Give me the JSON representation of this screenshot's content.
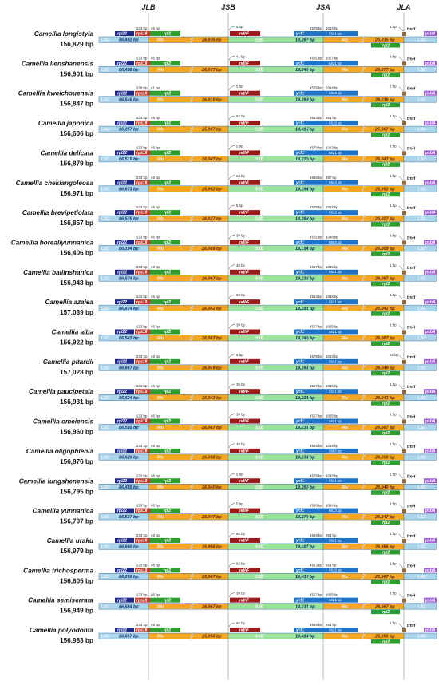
{
  "header": {
    "junctions": [
      "JLB",
      "JSB",
      "JSA",
      "JLA"
    ]
  },
  "regions": {
    "lsc": "LSC",
    "irb": "IRb",
    "ssc": "SSC",
    "ira": "IRa"
  },
  "genes": {
    "rpl22": "rpl22",
    "rps19": "rps19",
    "rpl2": "rpl2",
    "ndhF": "ndhF",
    "ycf1": "ycf1",
    "trnH": "trnH",
    "psbA": "psbA"
  },
  "colors": {
    "lsc": "#a9d4ea",
    "irb": "#f5a623",
    "ssc": "#9be39b",
    "ira": "#f5a623",
    "rpl22": "#1f2a8a",
    "rps19": "#c0392b",
    "rpl2": "#2e9e2e",
    "ndhF": "#9b1b1b",
    "ycf1": "#1e74c8",
    "trnH": "#8b6a3e",
    "psbA": "#9b59d6",
    "junction_line": "#aaaaaa"
  },
  "species": [
    {
      "name": "Camellia longistyla",
      "length": "156,829 bp",
      "lsc": "86,492 bp",
      "ir": "26,035 bp",
      "ssc": "18,267 bp",
      "rps19_ir": "233 bp",
      "rps19_lsc": "46 bp",
      "ndhf": "5 bp",
      "ycf1_ira": "4578 bp",
      "ycf1_ssc": "1043 bp",
      "ycf1_len": "5621 bp",
      "trnh": "1 bp"
    },
    {
      "name": "Camellia lienshanensis",
      "length": "156,901 bp",
      "lsc": "86,498 bp",
      "ir": "26,077 bp",
      "ssc": "18,248 bp",
      "rps19_ir": "233 bp",
      "rps19_lsc": "46 bp",
      "ndhf": "41 bp",
      "ndhf_len": "2252 bp",
      "ycf1_ira": "4565 bp",
      "ycf1_ssc": "1057 bp",
      "ycf1_len": "5621 bp",
      "trnh": "1 bp"
    },
    {
      "name": "Camellia kweichouensis",
      "length": "156,847 bp",
      "lsc": "86,546 bp",
      "ir": "26,016 bp",
      "ssc": "18,269 bp",
      "rps19_ir": "238 bp",
      "rps19_lsc": "41 bp",
      "ndhf": "5 bp",
      "ycf1_ira": "4578 bp",
      "ycf1_ssc": "1034 bp",
      "ycf1_len": "5612 bp",
      "trnh": "6 bp"
    },
    {
      "name": "Camellia japonica",
      "length": "156,606 bp",
      "lsc": "86,257 bp",
      "ir": "25,967 bp",
      "ssc": "18,415 bp",
      "rps19_ir": "233 bp",
      "rps19_lsc": "46 bp",
      "ndhf": "62 bp",
      "ycf1_ira": "4653 bp",
      "ycf1_ssc": "963 bp",
      "ycf1_len": "5615 bp",
      "trnh": "1 bp"
    },
    {
      "name": "Camellia delicata",
      "length": "156,879 bp",
      "lsc": "86,515 bp",
      "ir": "26,047 bp",
      "ssc": "18,270 bp",
      "rps19_ir": "233 bp",
      "rps19_lsc": "46 bp",
      "ndhf": "5 bp",
      "ycf1_ira": "4578 bp",
      "ycf1_ssc": "1043 bp",
      "ycf1_len": "5621 bp",
      "trnh": "1 bp"
    },
    {
      "name": "Camellia chekiangoleosa",
      "length": "156,971 bp",
      "lsc": "86,673 bp",
      "ir": "25,952 bp",
      "ssc": "18,394 bp",
      "rps19_ir": "233 bp",
      "rps19_lsc": "46 bp",
      "ndhf": "64 bp",
      "ycf1_ira": "4658 bp",
      "ycf1_ssc": "967 bp",
      "ycf1_len": "5624 bp",
      "trnh": "1 bp"
    },
    {
      "name": "Camellia brevipetiolata",
      "length": "156,857 bp",
      "lsc": "86,535 bp",
      "ir": "26,027 bp",
      "ssc": "18,268 bp",
      "rps19_ir": "233 bp",
      "rps19_lsc": "46 bp",
      "ndhf": "5 bp",
      "ycf1_ira": "4578 bp",
      "ycf1_ssc": "1034 bp",
      "ycf1_len": "5612 bp",
      "trnh": "1 bp"
    },
    {
      "name": "Camellia borealiyunnanica",
      "length": "156,406 bp",
      "lsc": "86,194 bp",
      "ir": "26,009 bp",
      "ssc": "18,194 bp",
      "rps19_ir": "233 bp",
      "rps19_lsc": "46 bp",
      "ndhf": "39 bp",
      "ndhf_ssc": "2241 bp",
      "ndhf_len": "2279 bp",
      "ycf1_ira": "4555 bp",
      "ycf1_ssc": "1048 bp",
      "ycf1_len": "5603 bp",
      "trnh": "1 bp"
    },
    {
      "name": "Camellia bailinshanica",
      "length": "156,943 bp",
      "lsc": "86,574 bp",
      "ir": "26,067 bp",
      "ssc": "18,235 bp",
      "rps19_ir": "233 bp",
      "rps19_lsc": "46 bp",
      "ndhf": "39 bp",
      "ndhf_ssc": "2241 bp",
      "ndhf_len": "2279 bp",
      "ycf1_ira": "4567 bp",
      "ycf1_ssc": "1055 bp",
      "ycf1_len": "5621 bp",
      "trnh": "1 bp"
    },
    {
      "name": "Camellia azalea",
      "length": "157,039 bp",
      "lsc": "86,674 bp",
      "ir": "26,042 bp",
      "ssc": "18,281 bp",
      "rps19_ir": "233 bp",
      "rps19_lsc": "46 bp",
      "ndhf": "58 bp",
      "ycf1_ira": "4553 bp",
      "ycf1_ssc": "1068 bp",
      "ycf1_len": "5621 bp",
      "trnh": "1 bp"
    },
    {
      "name": "Camellia  alba",
      "length": "156,922 bp",
      "lsc": "86,542 bp",
      "ir": "26,067 bp",
      "ssc": "18,246 bp",
      "rps19_ir": "233 bp",
      "rps19_lsc": "46 bp",
      "ndhf": "39 bp",
      "ndhf_ssc": "2241 bp",
      "ndhf_len": "2279 bp",
      "ycf1_ira": "4567 bp",
      "ycf1_ssc": "1055 bp",
      "ycf1_len": "5621 bp",
      "trnh": "1 bp"
    },
    {
      "name": "Camellia pitardii",
      "length": "157,028 bp",
      "lsc": "86,667 bp",
      "ir": "26,049 bp",
      "ssc": "18,263 bp",
      "rps19_ir": "233 bp",
      "rps19_lsc": "46 bp",
      "ndhf": "5 bp",
      "ycf1_ira": "4578 bp",
      "ycf1_ssc": "1043 bp",
      "ycf1_len": "5621 bp",
      "trnh": "52 bp"
    },
    {
      "name": "Camellia paucipetala",
      "length": "156,931 bp",
      "lsc": "86,624 bp",
      "ir": "26,043 bp",
      "ssc": "18,221 bp",
      "rps19_ir": "233 bp",
      "rps19_lsc": "46 bp",
      "ndhf": "39 bp",
      "ndhf_ssc": "2241 bp",
      "ndhf_len": "2279 bp",
      "ycf1_ira": "4567 bp",
      "ycf1_ssc": "1055 bp",
      "ycf1_len": "5621 bp",
      "trnh": "1 bp"
    },
    {
      "name": "Camellia omeiensis",
      "length": "156,960 bp",
      "lsc": "86,595 bp",
      "ir": "26,067 bp",
      "ssc": "18,231 bp",
      "rps19_ir": "233 bp",
      "rps19_lsc": "46 bp",
      "ndhf": "39 bp",
      "ndhf_ssc": "2236 bp",
      "ndhf_len": "2275 bp",
      "ycf1_ira": "4567 bp",
      "ycf1_ssc": "1055 bp",
      "ycf1_len": "5621 bp",
      "trnh": "1 bp"
    },
    {
      "name": "Camellia oligophlebia",
      "length": "156,876 bp",
      "lsc": "86,626 bp",
      "ir": "26,008 bp",
      "ssc": "18,234 bp",
      "rps19_ir": "233 bp",
      "rps19_lsc": "46 bp",
      "ndhf": "39 bp",
      "ndhf_ssc": "2241 bp",
      "ndhf_len": "2279 bp",
      "ycf1_ira": "4555 bp",
      "ycf1_ssc": "1049 bp",
      "ycf1_len": "5603 bp",
      "trnh": "1 bp"
    },
    {
      "name": "Camellia lungshenensis",
      "length": "156,795 bp",
      "lsc": "86,455 bp",
      "ir": "26,040 bp",
      "ssc": "18,260 bp",
      "rps19_ir": "233 bp",
      "rps19_lsc": "46 bp",
      "ndhf": "5 bp",
      "ycf1_ira": "4578 bp",
      "ycf1_ssc": "1043 bp",
      "ycf1_len": "5621 bp",
      "trnh": "1 bp"
    },
    {
      "name": "Camellia yunnanica",
      "length": "156,707 bp",
      "lsc": "86,537 bp",
      "ir": "25,947 bp",
      "ssc": "18,276 bp",
      "rps19_ir": "233 bp",
      "rps19_lsc": "46 bp",
      "ndhf": "5 bp",
      "ycf1_ira": "4580 bp",
      "ycf1_ssc": "1034 bp",
      "ycf1_len": "5613 bp",
      "trnh": "1 bp"
    },
    {
      "name": "Camellia uraku",
      "length": "156,979 bp",
      "lsc": "86,660 bp",
      "ir": "25,956 bp",
      "ssc": "18,407 bp",
      "rps19_ir": "233 bp",
      "rps19_lsc": "46 bp",
      "ndhf": "66 bp",
      "ycf1_ira": "4659 bp",
      "ycf1_ssc": "963 bp",
      "ycf1_len": "5621 bp",
      "trnh": "1 bp"
    },
    {
      "name": "Camellia trichosperma",
      "length": "156,605 bp",
      "lsc": "86,256 bp",
      "ir": "25,967 bp",
      "ssc": "18,415 bp",
      "rps19_ir": "233 bp",
      "rps19_lsc": "46 bp",
      "ndhf": "62 bp",
      "ycf1_ira": "4653 bp",
      "ycf1_ssc": "963 bp",
      "ycf1_len": "5615 bp",
      "trnh": "1 bp"
    },
    {
      "name": "Camellia semiserrata",
      "length": "156,949 bp",
      "lsc": "86,584 bp",
      "ir": "26,067 bp",
      "ssc": "18,231 bp",
      "rps19_ir": "233 bp",
      "rps19_lsc": "46 bp",
      "ndhf": "39 bp",
      "ndhf_ssc": "2241 bp",
      "ndhf_len": "2279 bp",
      "ycf1_ira": "4567 bp",
      "ycf1_ssc": "1055 bp",
      "ycf1_len": "5621 bp",
      "trnh": "1 bp"
    },
    {
      "name": "Camellia polyodonta",
      "length": "156,983 bp",
      "lsc": "86,657 bp",
      "ir": "25,956 bp",
      "ssc": "18,414 bp",
      "rps19_ir": "233 bp",
      "rps19_lsc": "46 bp",
      "ndhf": "66 bp",
      "ycf1_ira": "4659 bp",
      "ycf1_ssc": "963 bp",
      "ycf1_len": "5621 bp",
      "trnh": "1 bp"
    }
  ]
}
